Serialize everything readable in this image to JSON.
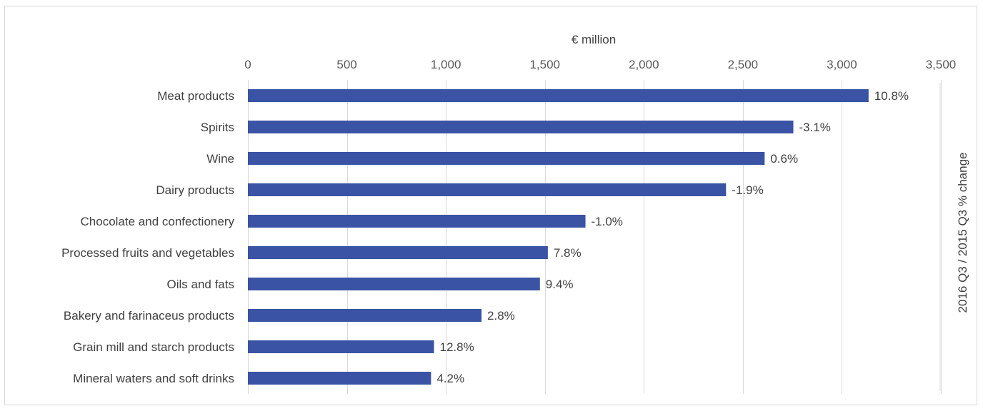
{
  "chart_data": {
    "type": "bar",
    "orientation": "horizontal",
    "xlabel": "€ million",
    "secondary_label": "2016 Q3 / 2015 Q3 % change",
    "xlim": [
      0,
      3500
    ],
    "x_ticks": [
      "0",
      "500",
      "1,000",
      "1,500",
      "2,000",
      "2,500",
      "3,000",
      "3,500"
    ],
    "x_tick_values": [
      0,
      500,
      1000,
      1500,
      2000,
      2500,
      3000,
      3500
    ],
    "grid": true,
    "bar_color": "#3a53a4",
    "categories": [
      "Meat products",
      "Spirits",
      "Wine",
      "Dairy products",
      "Chocolate and confectionery",
      "Processed fruits and vegetables",
      "Oils and fats",
      "Bakery and farinaceus products",
      "Grain mill and starch products",
      "Mineral waters and soft drinks"
    ],
    "values": [
      3135,
      2755,
      2610,
      2415,
      1705,
      1515,
      1475,
      1180,
      940,
      925
    ],
    "pct_change_labels": [
      "10.8%",
      "-3.1%",
      "0.6%",
      "-1.9%",
      "-1.0%",
      "7.8%",
      "9.4%",
      "2.8%",
      "12.8%",
      "4.2%"
    ]
  }
}
